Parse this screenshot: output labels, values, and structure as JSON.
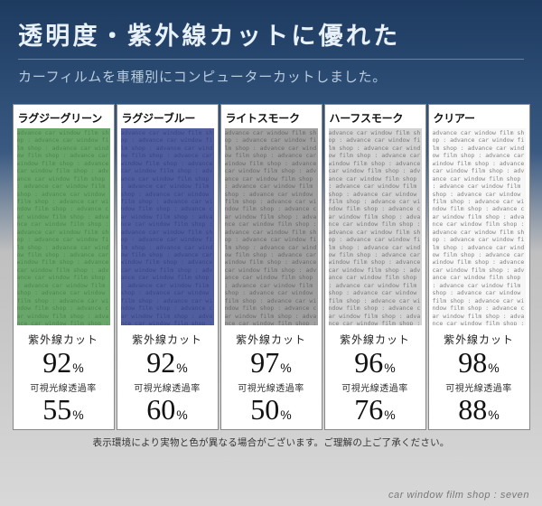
{
  "header": {
    "headline": "透明度・紫外線カットに優れた",
    "subtitle": "カーフィルムを車種別にコンピューターカットしました。"
  },
  "swatch_text_pattern": "advance car window film shop : ",
  "cards": [
    {
      "label": "ラグジーグリーン",
      "swatch_color": "#3f8d3f",
      "swatch_opacity": 0.78,
      "uv_label": "紫外線カット",
      "uv_value": "92",
      "uv_unit": "%",
      "trans_label": "可視光線透過率",
      "trans_value": "55",
      "trans_unit": "%"
    },
    {
      "label": "ラグジーブルー",
      "swatch_color": "#2a3a8a",
      "swatch_opacity": 0.82,
      "uv_label": "紫外線カット",
      "uv_value": "92",
      "uv_unit": "%",
      "trans_label": "可視光線透過率",
      "trans_value": "60",
      "trans_unit": "%"
    },
    {
      "label": "ライトスモーク",
      "swatch_color": "#606060",
      "swatch_opacity": 0.6,
      "uv_label": "紫外線カット",
      "uv_value": "97",
      "uv_unit": "%",
      "trans_label": "可視光線透過率",
      "trans_value": "50",
      "trans_unit": "%"
    },
    {
      "label": "ハーフスモーク",
      "swatch_color": "#808080",
      "swatch_opacity": 0.35,
      "uv_label": "紫外線カット",
      "uv_value": "96",
      "uv_unit": "%",
      "trans_label": "可視光線透過率",
      "trans_value": "76",
      "trans_unit": "%"
    },
    {
      "label": "クリアー",
      "swatch_color": "#c0c0c0",
      "swatch_opacity": 0.15,
      "uv_label": "紫外線カット",
      "uv_value": "98",
      "uv_unit": "%",
      "trans_label": "可視光線透過率",
      "trans_value": "88",
      "trans_unit": "%"
    }
  ],
  "disclaimer": "表示環境により実物と色が異なる場合がございます。ご理解の上ご了承ください。",
  "footer": "car window film shop : seven",
  "colors": {
    "bg_top": "#1e3a5f",
    "bg_bottom": "#d8d8d8",
    "headline_color": "#e8f0f8",
    "subtitle_color": "#b8ccdf",
    "card_border": "#888888"
  },
  "fonts": {
    "headline_size": 27,
    "subtitle_size": 15,
    "card_label_size": 12,
    "stat_num_size": 32,
    "stat_pct_size": 14,
    "stat_label_size": 12,
    "stat_label2_size": 10,
    "disclaimer_size": 10.5,
    "footer_size": 11
  }
}
